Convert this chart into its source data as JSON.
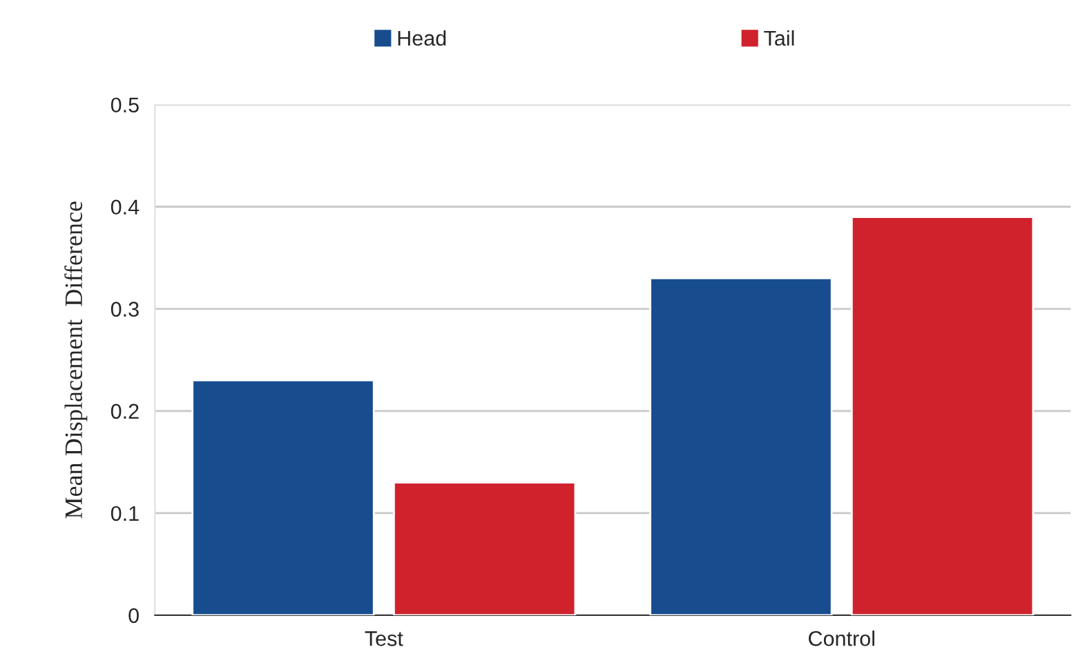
{
  "chart_data": {
    "type": "bar",
    "ylabel": "Mean Displacement  Difference",
    "categories": [
      "Test",
      "Control"
    ],
    "series": [
      {
        "name": "Head",
        "color": "#174d8f",
        "values": [
          0.23,
          0.33
        ]
      },
      {
        "name": "Tail",
        "color": "#d0222d",
        "values": [
          0.13,
          0.39
        ]
      }
    ],
    "ylim": [
      0,
      0.5
    ],
    "yticks": [
      0,
      0.1,
      0.2,
      0.3,
      0.4,
      0.5
    ],
    "grid": "y",
    "legend": "top"
  }
}
